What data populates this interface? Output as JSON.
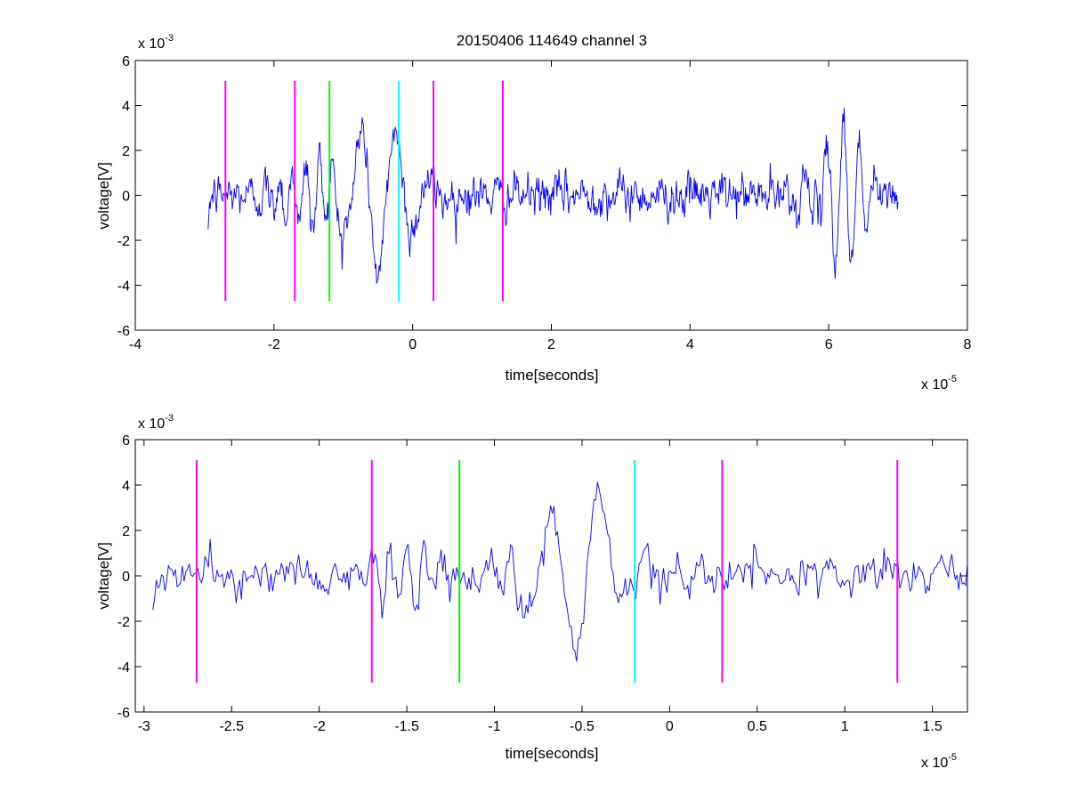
{
  "chart_data": [
    {
      "type": "line",
      "title": "20150406 114649 channel 3",
      "xlabel": "time[seconds]",
      "ylabel": "voltage[V]",
      "x_multiplier_label": "x 10",
      "x_multiplier_exp": "-5",
      "y_multiplier_label": "x 10",
      "y_multiplier_exp": "-3",
      "xlim": [
        -4,
        8
      ],
      "ylim": [
        -6,
        6
      ],
      "x_ticks": [
        -4,
        -2,
        0,
        2,
        4,
        6,
        8
      ],
      "x_tick_labels": [
        "-4",
        "-2",
        "0",
        "2",
        "4",
        "6",
        "8"
      ],
      "y_ticks": [
        -6,
        -4,
        -2,
        0,
        2,
        4,
        6
      ],
      "y_tick_labels": [
        "-6",
        "-4",
        "-2",
        "0",
        "2",
        "4",
        "6"
      ],
      "grid": false,
      "legend": "none",
      "series": [
        {
          "color": "#0000ff",
          "x_range": [
            -2.95,
            7.0
          ],
          "samples": 1000,
          "noise_std": 0.75,
          "bursts": [
            {
              "center": -1.5,
              "width": 0.5,
              "amplitude": 1.6,
              "freq": 2.6
            },
            {
              "center": -0.5,
              "width": 0.55,
              "amplitude": 3.6,
              "freq": 1.0
            },
            {
              "center": 6.2,
              "width": 0.4,
              "amplitude": 3.4,
              "freq": 2.2
            },
            {
              "center": 5.6,
              "width": 0.3,
              "amplitude": 1.2,
              "freq": 2.0
            }
          ],
          "start_value": -1.5,
          "end_value": -0.3
        }
      ],
      "markers": [
        {
          "x": -2.7,
          "color": "#ff00ff",
          "y_range": [
            -4.7,
            5.1
          ]
        },
        {
          "x": -1.7,
          "color": "#ff00ff",
          "y_range": [
            -4.7,
            5.1
          ]
        },
        {
          "x": -1.2,
          "color": "#00ff00",
          "y_range": [
            -4.7,
            5.1
          ]
        },
        {
          "x": -0.2,
          "color": "#00ffff",
          "y_range": [
            -4.7,
            5.1
          ]
        },
        {
          "x": 0.3,
          "color": "#ff00ff",
          "y_range": [
            -4.7,
            5.1
          ]
        },
        {
          "x": 1.3,
          "color": "#ff00ff",
          "y_range": [
            -4.7,
            5.1
          ]
        }
      ]
    },
    {
      "type": "line",
      "title": "",
      "xlabel": "time[seconds]",
      "ylabel": "voltage[V]",
      "x_multiplier_label": "x 10",
      "x_multiplier_exp": "-5",
      "y_multiplier_label": "x 10",
      "y_multiplier_exp": "-3",
      "xlim": [
        -3.05,
        1.7
      ],
      "ylim": [
        -6,
        6
      ],
      "x_ticks": [
        -3,
        -2.5,
        -2,
        -1.5,
        -1,
        -0.5,
        0,
        0.5,
        1,
        1.5
      ],
      "x_tick_labels": [
        "-3",
        "-2.5",
        "-2",
        "-1.5",
        "-1",
        "-0.5",
        "0",
        "0.5",
        "1",
        "1.5"
      ],
      "y_ticks": [
        -6,
        -4,
        -2,
        0,
        2,
        4,
        6
      ],
      "y_tick_labels": [
        "-6",
        "-4",
        "-2",
        "0",
        "2",
        "4",
        "6"
      ],
      "grid": false,
      "legend": "none",
      "series": [
        {
          "color": "#0000ff",
          "x_range": [
            -2.95,
            1.7
          ],
          "samples": 470,
          "noise_std": 0.75,
          "bursts": [
            {
              "center": -1.5,
              "width": 0.3,
              "amplitude": 1.8,
              "freq": 5.0
            },
            {
              "center": -0.55,
              "width": 0.3,
              "amplitude": 3.8,
              "freq": 1.8
            },
            {
              "center": -0.95,
              "width": 0.15,
              "amplitude": 1.2,
              "freq": 4.0
            }
          ],
          "start_value": -1.5,
          "end_value": 0.6
        }
      ],
      "markers": [
        {
          "x": -2.7,
          "color": "#ff00ff",
          "y_range": [
            -4.7,
            5.1
          ]
        },
        {
          "x": -1.7,
          "color": "#ff00ff",
          "y_range": [
            -4.7,
            5.1
          ]
        },
        {
          "x": -1.2,
          "color": "#00ff00",
          "y_range": [
            -4.7,
            5.1
          ]
        },
        {
          "x": -0.2,
          "color": "#00ffff",
          "y_range": [
            -4.7,
            5.1
          ]
        },
        {
          "x": 0.3,
          "color": "#ff00ff",
          "y_range": [
            -4.7,
            5.1
          ]
        },
        {
          "x": 1.3,
          "color": "#ff00ff",
          "y_range": [
            -4.7,
            5.1
          ]
        }
      ]
    }
  ]
}
